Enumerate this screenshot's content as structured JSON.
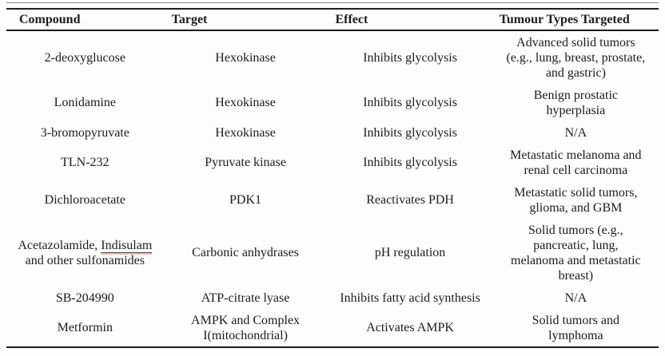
{
  "colors": {
    "text": "#1c1c1c",
    "rule_dark": "#1e1e1e",
    "rule_light": "#8a8a8a",
    "spellcheck_underline": "#e7c0ba"
  },
  "table": {
    "headers": [
      "Compound",
      "Target",
      "Effect",
      "Tumour Types Targeted"
    ],
    "rows": [
      {
        "compound": "2-deoxyglucose",
        "target": "Hexokinase",
        "effect": "Inhibits glycolysis",
        "tumour_types": "Advanced solid tumors\n(e.g., lung, breast, prostate,\nand gastric)"
      },
      {
        "compound": "Lonidamine",
        "target": "Hexokinase",
        "effect": "Inhibits glycolysis",
        "tumour_types": "Benign prostatic\nhyperplasia"
      },
      {
        "compound": "3-bromopyruvate",
        "target": "Hexokinase",
        "effect": "Inhibits glycolysis",
        "tumour_types": "N/A"
      },
      {
        "compound": "TLN-232",
        "target": "Pyruvate kinase",
        "effect": "Inhibits glycolysis",
        "tumour_types": "Metastatic melanoma and\nrenal cell carcinoma"
      },
      {
        "compound": "Dichloroacetate",
        "target": "PDK1",
        "effect": "Reactivates PDH",
        "tumour_types": "Metastatic solid tumors,\nglioma, and GBM"
      },
      {
        "compound_segments": [
          {
            "text": "Acetazolamide, "
          },
          {
            "text": "Indisulam",
            "underline": true
          },
          {
            "text": "\nand other sulfonamides"
          }
        ],
        "target": "Carbonic anhydrases",
        "effect": "pH regulation",
        "tumour_types": "Solid tumors (e.g.,\npancreatic, lung,\nmelanoma and metastatic\nbreast)"
      },
      {
        "compound": "SB-204990",
        "target": "ATP-citrate lyase",
        "effect": "Inhibits fatty acid synthesis",
        "tumour_types": "N/A"
      },
      {
        "compound": "Metformin",
        "target": "AMPK and Complex\nI(mitochondrial)",
        "effect": "Activates AMPK",
        "tumour_types": "Solid tumors and\nlymphoma"
      }
    ]
  }
}
